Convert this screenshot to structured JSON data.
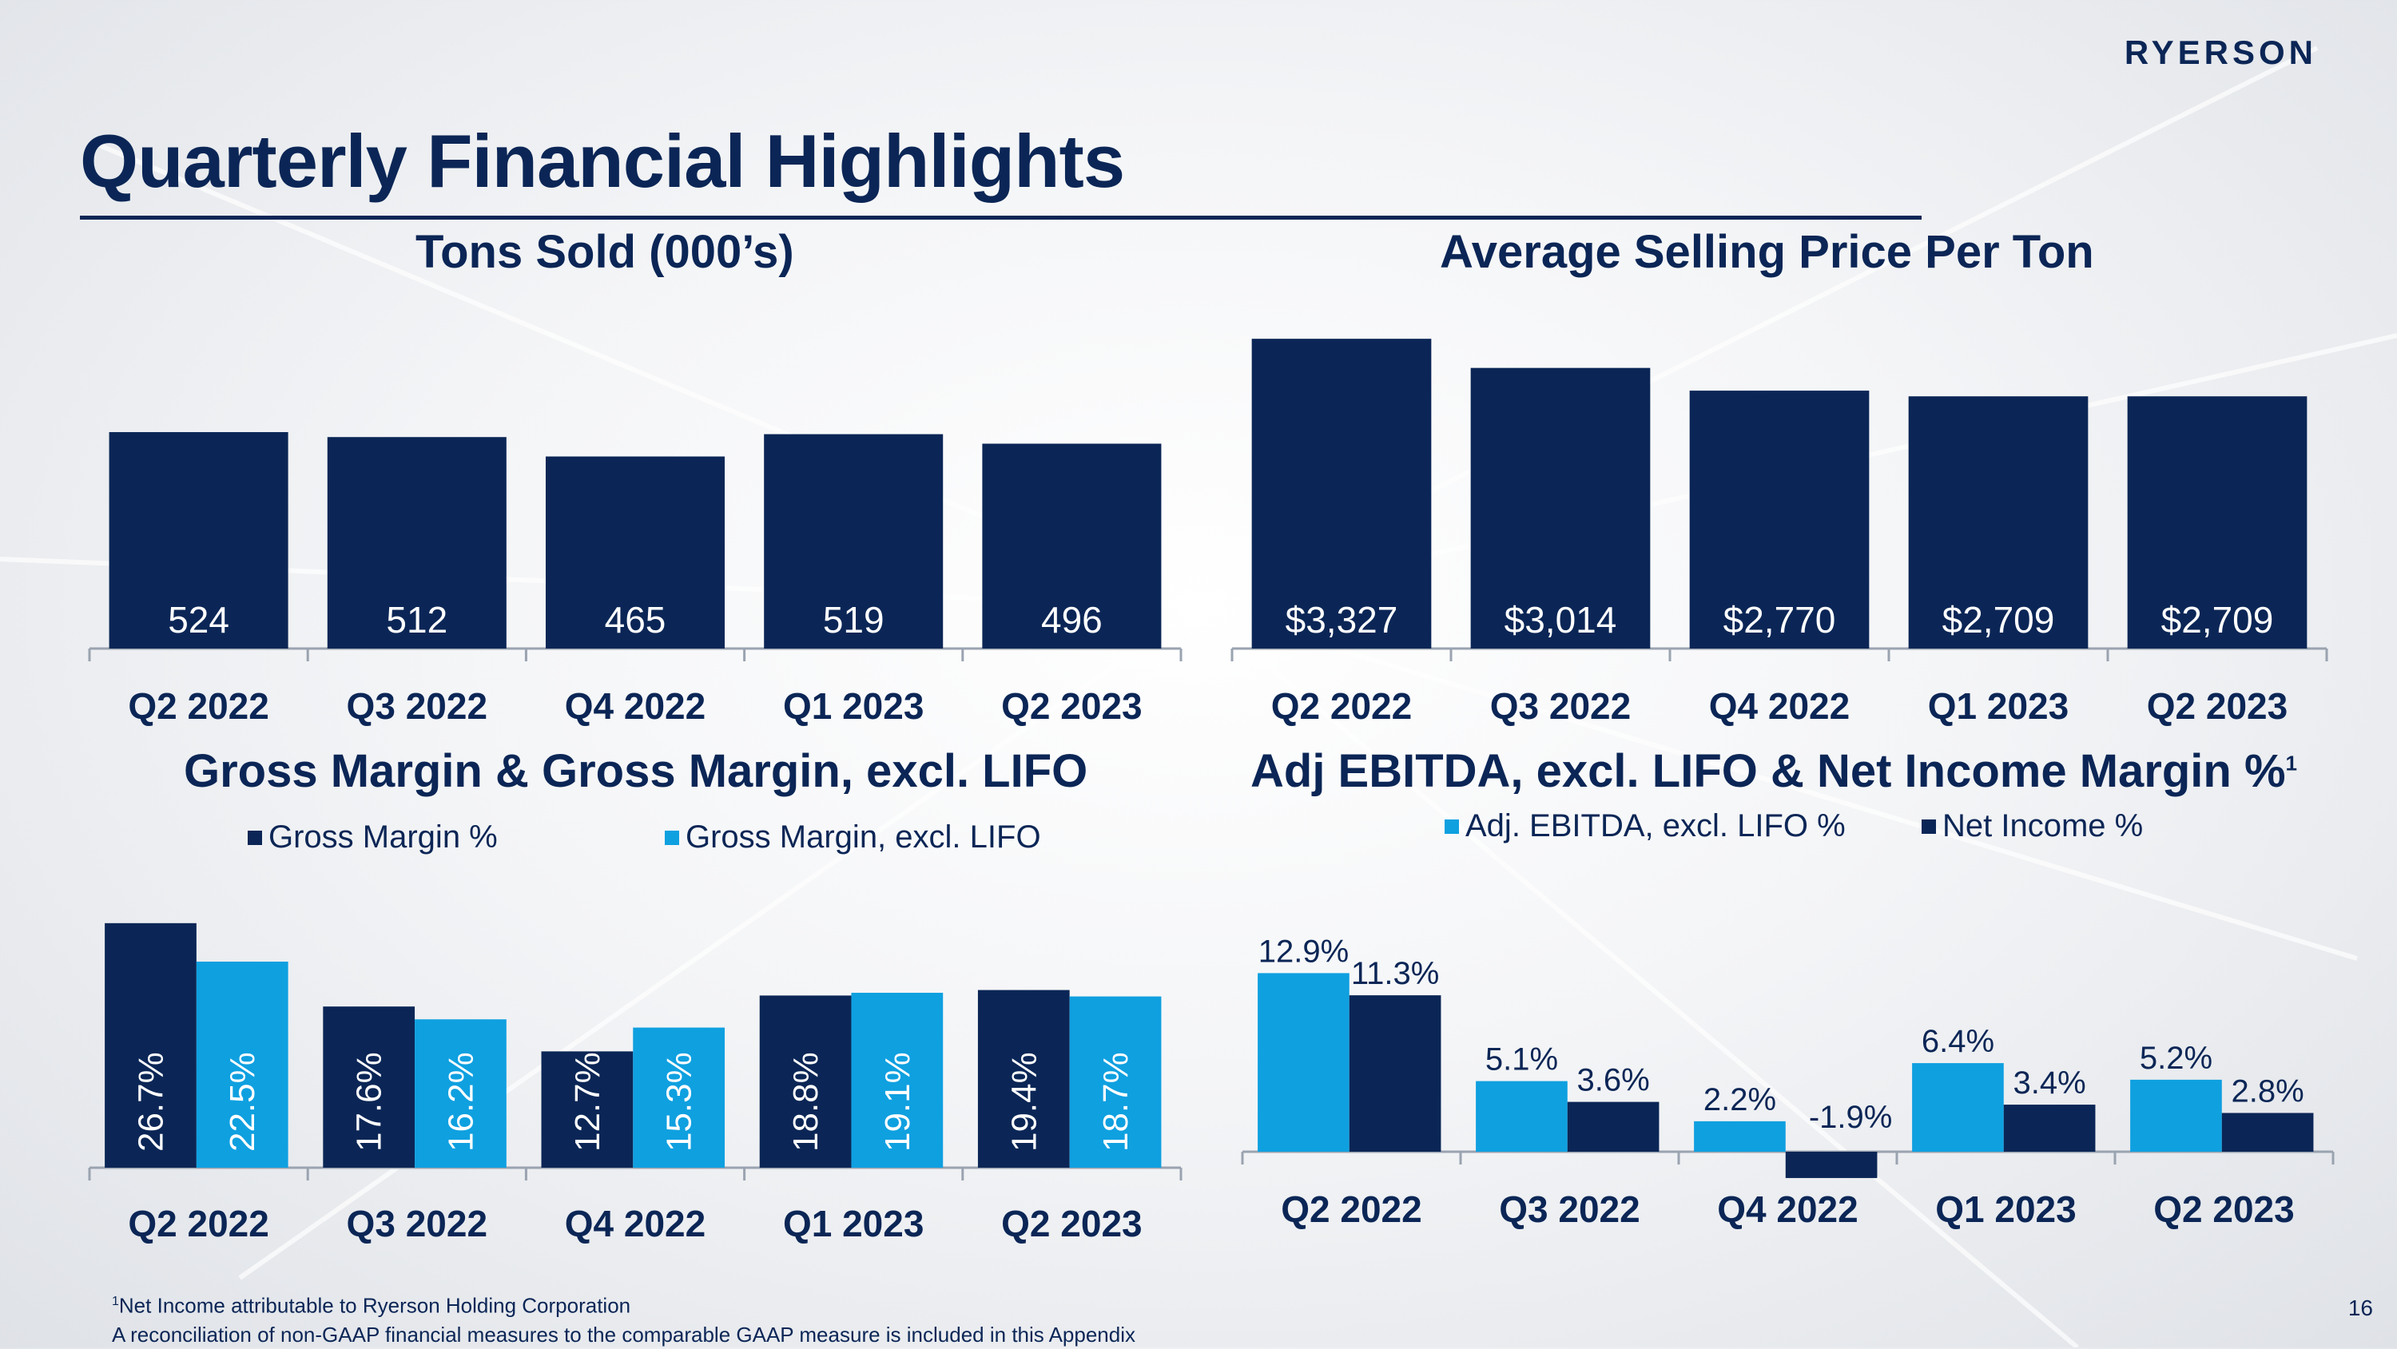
{
  "header": {
    "logo_text": "RYERSON",
    "title": "Quarterly Financial Highlights"
  },
  "colors": {
    "navy": "#0b2656",
    "blue": "#0fa0e0"
  },
  "chart_data": [
    {
      "id": "tons",
      "type": "bar",
      "title": "Tons Sold (000’s)",
      "categories": [
        "Q2 2022",
        "Q3 2022",
        "Q4 2022",
        "Q1 2023",
        "Q2 2023"
      ],
      "series": [
        {
          "values": [
            524,
            512,
            465,
            519,
            496
          ],
          "labels": [
            "524",
            "512",
            "465",
            "519",
            "496"
          ],
          "color": "#0b2656"
        }
      ],
      "ylim": [
        0,
        700
      ],
      "grid": false
    },
    {
      "id": "asp",
      "type": "bar",
      "title": "Average Selling Price Per Ton",
      "categories": [
        "Q2 2022",
        "Q3 2022",
        "Q4 2022",
        "Q1 2023",
        "Q2 2023"
      ],
      "series": [
        {
          "values": [
            3327,
            3014,
            2770,
            2709,
            2709
          ],
          "labels": [
            "$3,327",
            "$3,014",
            "$2,770",
            "$2,709",
            "$2,709"
          ],
          "color": "#0b2656"
        }
      ],
      "ylim": [
        0,
        3500
      ],
      "grid": false
    },
    {
      "id": "gm",
      "type": "bar",
      "title": "Gross Margin & Gross Margin, excl. LIFO",
      "legend": "top",
      "categories": [
        "Q2 2022",
        "Q3 2022",
        "Q4 2022",
        "Q1 2023",
        "Q2 2023"
      ],
      "series": [
        {
          "name": "Gross Margin %",
          "values": [
            26.7,
            17.6,
            12.7,
            18.8,
            19.4
          ],
          "labels": [
            "26.7%",
            "17.6%",
            "12.7%",
            "18.8%",
            "19.4%"
          ],
          "color": "#0b2656"
        },
        {
          "name": "Gross Margin, excl. LIFO",
          "values": [
            22.5,
            16.2,
            15.3,
            19.1,
            18.7
          ],
          "labels": [
            "22.5%",
            "16.2%",
            "15.3%",
            "19.1%",
            "18.7%"
          ],
          "color": "#0fa0e0"
        }
      ],
      "ylim": [
        0,
        30
      ],
      "grid": false
    },
    {
      "id": "ebitda",
      "type": "bar",
      "title": "Adj EBITDA, excl. LIFO & Net Income Margin %",
      "title_sup": "1",
      "legend": "top",
      "categories": [
        "Q2 2022",
        "Q3 2022",
        "Q4 2022",
        "Q1 2023",
        "Q2 2023"
      ],
      "series": [
        {
          "name": "Adj. EBITDA, excl. LIFO %",
          "values": [
            12.9,
            5.1,
            2.2,
            6.4,
            5.2
          ],
          "labels": [
            "12.9%",
            "5.1%",
            "2.2%",
            "6.4%",
            "5.2%"
          ],
          "color": "#0fa0e0"
        },
        {
          "name": "Net Income %",
          "values": [
            11.3,
            3.6,
            -1.9,
            3.4,
            2.8
          ],
          "labels": [
            "11.3%",
            "3.6%",
            "-1.9%",
            "3.4%",
            "2.8%"
          ],
          "color": "#0b2656"
        }
      ],
      "ylim": [
        -3,
        15
      ],
      "grid": false
    }
  ],
  "footnote": {
    "line1_sup": "1",
    "line1": "Net Income attributable to Ryerson Holding Corporation",
    "line2": "A reconciliation of non-GAAP financial measures to the comparable GAAP measure is included in this Appendix"
  },
  "page_number": "16"
}
